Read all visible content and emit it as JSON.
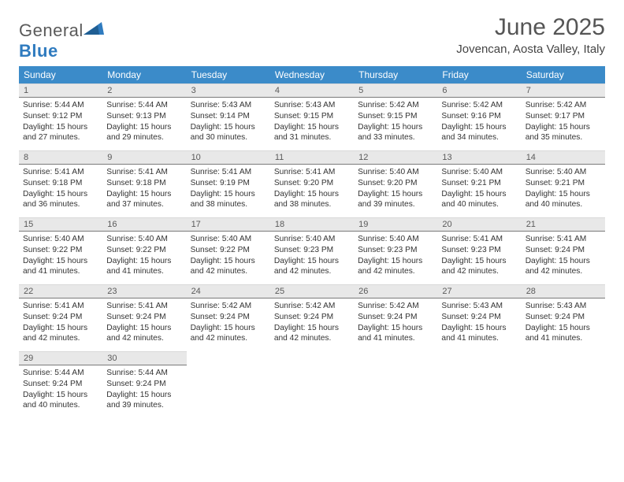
{
  "brand": {
    "part1": "General",
    "part2": "Blue"
  },
  "title": "June 2025",
  "location": "Jovencan, Aosta Valley, Italy",
  "colors": {
    "header_bg": "#3b8bc9",
    "header_text": "#ffffff",
    "daynum_bg": "#e8e8e8",
    "daynum_border": "#7a7a7a",
    "text": "#333333",
    "logo_gray": "#5a5a5a",
    "logo_blue": "#2f7bbf",
    "page_bg": "#ffffff"
  },
  "typography": {
    "title_fontsize": 30,
    "location_fontsize": 15,
    "dayheader_fontsize": 12,
    "daynum_fontsize": 11,
    "info_fontsize": 10.2
  },
  "day_headers": [
    "Sunday",
    "Monday",
    "Tuesday",
    "Wednesday",
    "Thursday",
    "Friday",
    "Saturday"
  ],
  "weeks": [
    [
      {
        "n": "1",
        "sr": "5:44 AM",
        "ss": "9:12 PM",
        "dl": "15 hours and 27 minutes."
      },
      {
        "n": "2",
        "sr": "5:44 AM",
        "ss": "9:13 PM",
        "dl": "15 hours and 29 minutes."
      },
      {
        "n": "3",
        "sr": "5:43 AM",
        "ss": "9:14 PM",
        "dl": "15 hours and 30 minutes."
      },
      {
        "n": "4",
        "sr": "5:43 AM",
        "ss": "9:15 PM",
        "dl": "15 hours and 31 minutes."
      },
      {
        "n": "5",
        "sr": "5:42 AM",
        "ss": "9:15 PM",
        "dl": "15 hours and 33 minutes."
      },
      {
        "n": "6",
        "sr": "5:42 AM",
        "ss": "9:16 PM",
        "dl": "15 hours and 34 minutes."
      },
      {
        "n": "7",
        "sr": "5:42 AM",
        "ss": "9:17 PM",
        "dl": "15 hours and 35 minutes."
      }
    ],
    [
      {
        "n": "8",
        "sr": "5:41 AM",
        "ss": "9:18 PM",
        "dl": "15 hours and 36 minutes."
      },
      {
        "n": "9",
        "sr": "5:41 AM",
        "ss": "9:18 PM",
        "dl": "15 hours and 37 minutes."
      },
      {
        "n": "10",
        "sr": "5:41 AM",
        "ss": "9:19 PM",
        "dl": "15 hours and 38 minutes."
      },
      {
        "n": "11",
        "sr": "5:41 AM",
        "ss": "9:20 PM",
        "dl": "15 hours and 38 minutes."
      },
      {
        "n": "12",
        "sr": "5:40 AM",
        "ss": "9:20 PM",
        "dl": "15 hours and 39 minutes."
      },
      {
        "n": "13",
        "sr": "5:40 AM",
        "ss": "9:21 PM",
        "dl": "15 hours and 40 minutes."
      },
      {
        "n": "14",
        "sr": "5:40 AM",
        "ss": "9:21 PM",
        "dl": "15 hours and 40 minutes."
      }
    ],
    [
      {
        "n": "15",
        "sr": "5:40 AM",
        "ss": "9:22 PM",
        "dl": "15 hours and 41 minutes."
      },
      {
        "n": "16",
        "sr": "5:40 AM",
        "ss": "9:22 PM",
        "dl": "15 hours and 41 minutes."
      },
      {
        "n": "17",
        "sr": "5:40 AM",
        "ss": "9:22 PM",
        "dl": "15 hours and 42 minutes."
      },
      {
        "n": "18",
        "sr": "5:40 AM",
        "ss": "9:23 PM",
        "dl": "15 hours and 42 minutes."
      },
      {
        "n": "19",
        "sr": "5:40 AM",
        "ss": "9:23 PM",
        "dl": "15 hours and 42 minutes."
      },
      {
        "n": "20",
        "sr": "5:41 AM",
        "ss": "9:23 PM",
        "dl": "15 hours and 42 minutes."
      },
      {
        "n": "21",
        "sr": "5:41 AM",
        "ss": "9:24 PM",
        "dl": "15 hours and 42 minutes."
      }
    ],
    [
      {
        "n": "22",
        "sr": "5:41 AM",
        "ss": "9:24 PM",
        "dl": "15 hours and 42 minutes."
      },
      {
        "n": "23",
        "sr": "5:41 AM",
        "ss": "9:24 PM",
        "dl": "15 hours and 42 minutes."
      },
      {
        "n": "24",
        "sr": "5:42 AM",
        "ss": "9:24 PM",
        "dl": "15 hours and 42 minutes."
      },
      {
        "n": "25",
        "sr": "5:42 AM",
        "ss": "9:24 PM",
        "dl": "15 hours and 42 minutes."
      },
      {
        "n": "26",
        "sr": "5:42 AM",
        "ss": "9:24 PM",
        "dl": "15 hours and 41 minutes."
      },
      {
        "n": "27",
        "sr": "5:43 AM",
        "ss": "9:24 PM",
        "dl": "15 hours and 41 minutes."
      },
      {
        "n": "28",
        "sr": "5:43 AM",
        "ss": "9:24 PM",
        "dl": "15 hours and 41 minutes."
      }
    ],
    [
      {
        "n": "29",
        "sr": "5:44 AM",
        "ss": "9:24 PM",
        "dl": "15 hours and 40 minutes."
      },
      {
        "n": "30",
        "sr": "5:44 AM",
        "ss": "9:24 PM",
        "dl": "15 hours and 39 minutes."
      },
      null,
      null,
      null,
      null,
      null
    ]
  ],
  "labels": {
    "sunrise": "Sunrise: ",
    "sunset": "Sunset: ",
    "daylight": "Daylight: "
  }
}
